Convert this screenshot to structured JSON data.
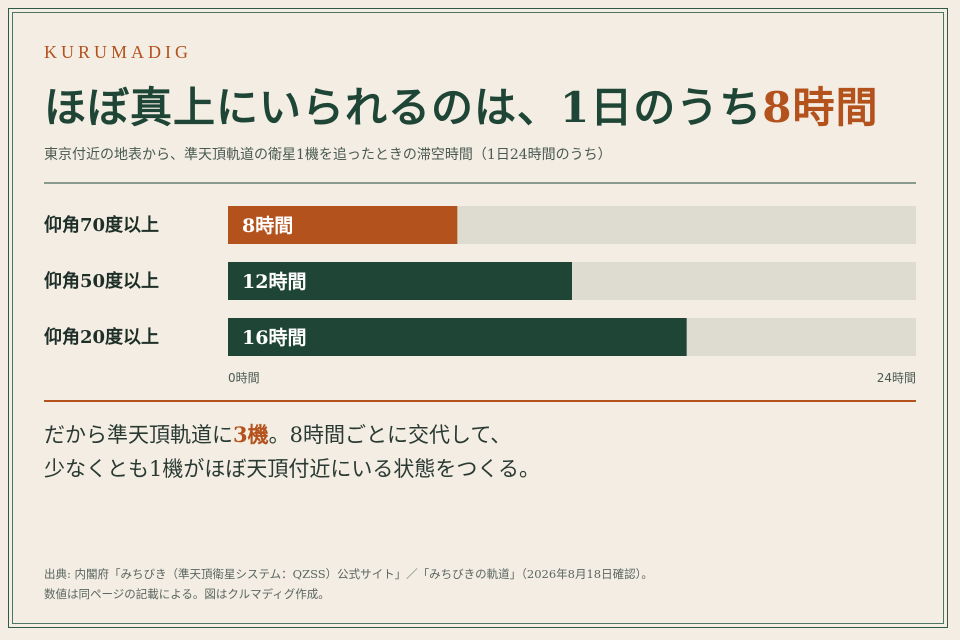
{
  "brand": "KURUMADIG",
  "title": {
    "main": "ほぼ真上にいられるのは、1日のうち",
    "highlight": "8時間"
  },
  "subtitle": "東京付近の地表から、準天頂軌道の衛星1機を追ったときの滞空時間（1日24時間のうち）",
  "takeaway": {
    "line1_pre": "だから準天頂軌道に",
    "line1_accent": "3機",
    "line1_post": "。8時間ごとに交代して、",
    "line2": "少なくとも1機がほぼ天頂付近にいる状態をつくる。"
  },
  "source": {
    "line1": "出典: 内閣府「みちびき（準天頂衛星システム：QZSS）公式サイト」／「みちびきの軌道」（2026年8月18日確認）。",
    "line2": "数値は同ページの記載による。図はクルマディグ作成。"
  },
  "colors": {
    "accent": "#b4521e",
    "primary": "#1e4535",
    "track": "#dedbd0",
    "background": "#f3ede3"
  },
  "chart_data": {
    "type": "bar",
    "orientation": "horizontal",
    "categories": [
      "仰角70度以上",
      "仰角50度以上",
      "仰角20度以上"
    ],
    "values": [
      8,
      12,
      16
    ],
    "value_labels": [
      "8時間",
      "12時間",
      "16時間"
    ],
    "highlight_index": 0,
    "xlim": [
      0,
      24
    ],
    "x_tick_labels": [
      "0時間",
      "24時間"
    ],
    "grid": false,
    "legend": "none"
  }
}
